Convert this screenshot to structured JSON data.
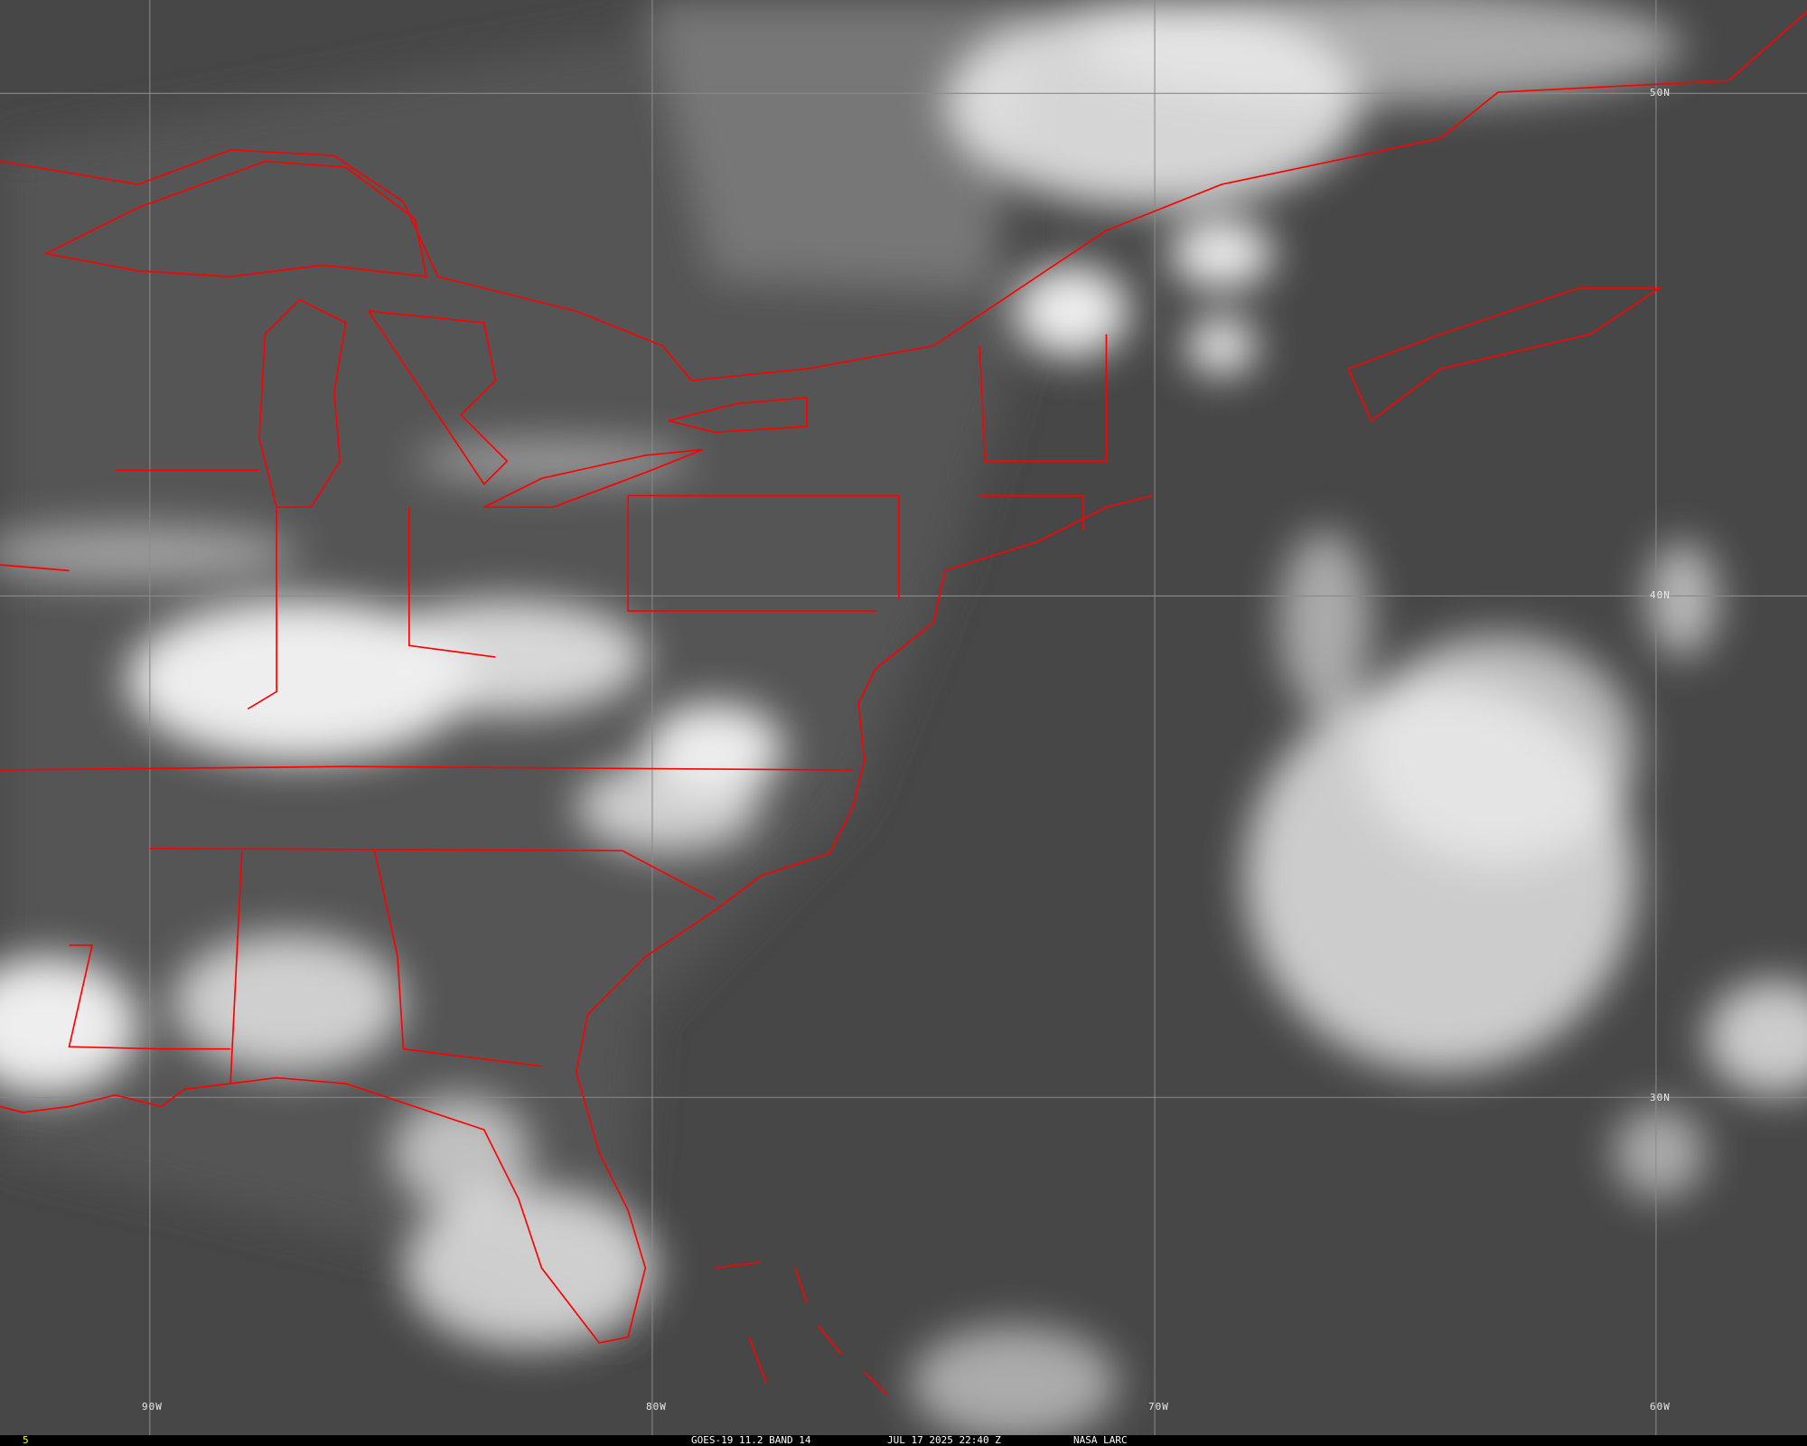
{
  "footer": {
    "frame_number": "5",
    "product": "GOES-19 11.2 BAND 14",
    "timestamp": "JUL 17 2025 22:40 Z",
    "credit": "NASA LARC"
  },
  "grid": {
    "longitudes": [
      "90W",
      "80W",
      "70W",
      "60W"
    ],
    "latitudes": [
      "50N",
      "40N",
      "30N"
    ]
  },
  "colors": {
    "border": "#ff0000",
    "background": "#4a4a4a",
    "cloud": "#f0f0f0",
    "grid": "#8a8a8a",
    "frame_number": "#ffff00"
  }
}
